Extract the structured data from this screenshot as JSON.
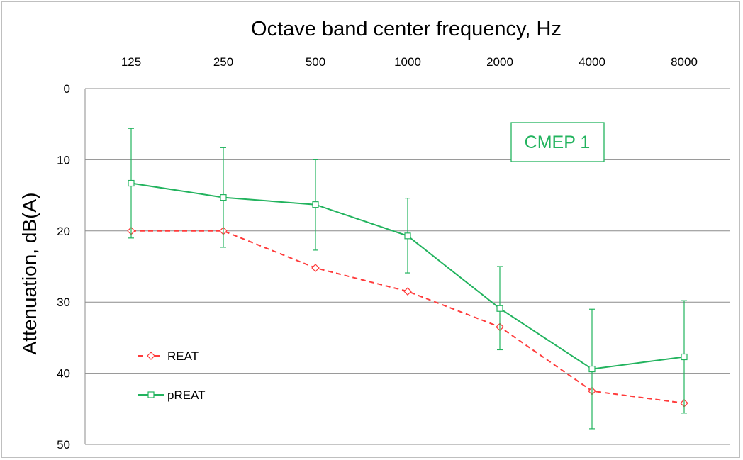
{
  "chart_data": {
    "type": "line",
    "title": "Octave band center frequency, Hz",
    "xlabel": "Octave band center frequency, Hz",
    "ylabel": "Attenuation, dB(A)",
    "categories": [
      "125",
      "250",
      "500",
      "1000",
      "2000",
      "4000",
      "8000"
    ],
    "ylim": [
      0,
      50
    ],
    "y_inverted": true,
    "yticks": [
      "0",
      "10",
      "20",
      "30",
      "40",
      "50"
    ],
    "grid": "horizontal",
    "legend_position": "bottom-left",
    "annotation": "CMEP 1",
    "series": [
      {
        "name": "REAT",
        "color": "#ff3b3b",
        "style": "dashed",
        "marker": "diamond",
        "values": [
          20,
          20,
          25.2,
          28.5,
          33.5,
          42.5,
          44.2
        ],
        "error_low": [
          null,
          null,
          null,
          null,
          null,
          null,
          null
        ],
        "error_high": [
          null,
          null,
          null,
          null,
          null,
          null,
          null
        ]
      },
      {
        "name": "pREAT",
        "color": "#22b35e",
        "style": "solid",
        "marker": "square",
        "values": [
          13.3,
          15.3,
          16.3,
          20.7,
          30.9,
          39.4,
          37.7
        ],
        "error_low": [
          5.6,
          8.3,
          10,
          15.4,
          25,
          31,
          29.8
        ],
        "error_high": [
          21,
          22.3,
          22.7,
          25.9,
          36.7,
          47.8,
          45.6
        ]
      }
    ]
  }
}
